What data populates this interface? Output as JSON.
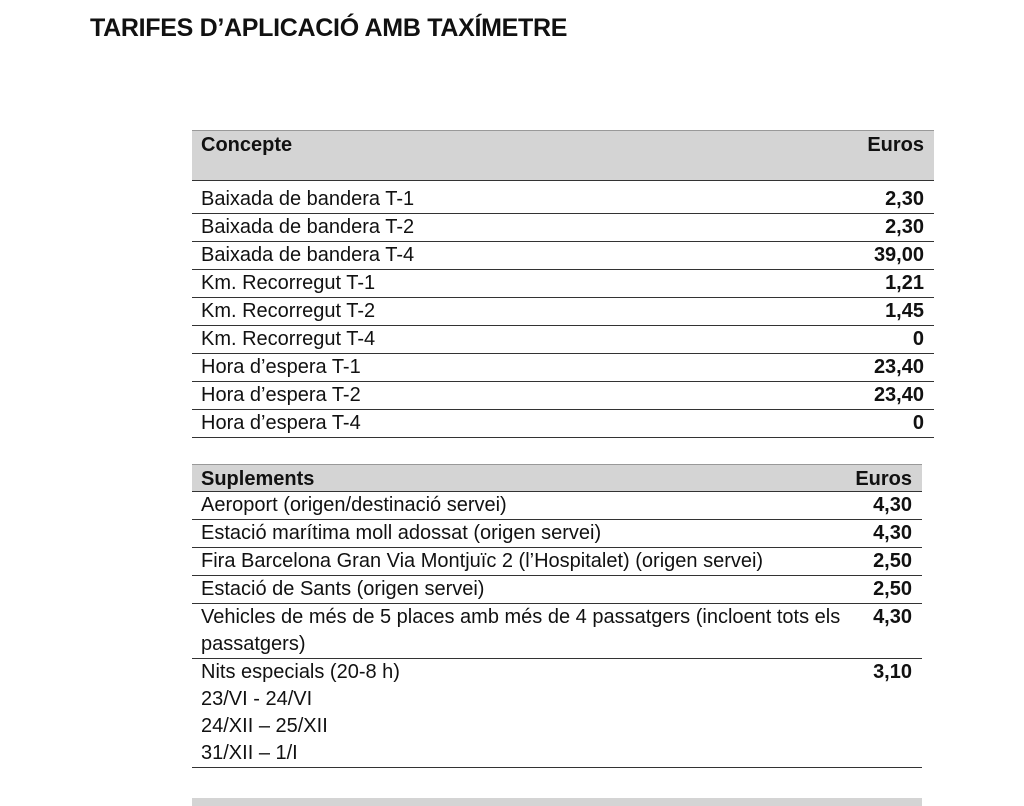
{
  "title": "TARIFES D’APLICACIÓ AMB TAXÍMETRE",
  "table1": {
    "header": [
      "Concepte",
      "Euros"
    ],
    "rows": [
      [
        "Baixada de bandera T-1",
        "2,30"
      ],
      [
        "Baixada de bandera T-2",
        "2,30"
      ],
      [
        "Baixada de bandera T-4",
        "39,00"
      ],
      [
        "Km. Recorregut T-1",
        "1,21"
      ],
      [
        "Km. Recorregut T-2",
        "1,45"
      ],
      [
        "Km. Recorregut T-4",
        "0"
      ],
      [
        "Hora d’espera T-1",
        "23,40"
      ],
      [
        "Hora d’espera T-2",
        "23,40"
      ],
      [
        "Hora d’espera T-4",
        "0"
      ]
    ]
  },
  "table2": {
    "header": [
      "Suplements",
      "Euros"
    ],
    "rows": [
      [
        "Aeroport (origen/destinació servei)",
        "4,30"
      ],
      [
        "Estació marítima moll adossat (origen servei)",
        "4,30"
      ],
      [
        "Fira Barcelona Gran Via  Montjuïc 2 (l’Hospitalet) (origen servei)",
        "2,50"
      ],
      [
        "Estació de Sants (origen servei)",
        "2,50"
      ],
      [
        "Vehicles de més de 5 places amb més de 4 passatgers (incloent tots els passatgers)",
        "4,30"
      ],
      [
        [
          "Nits especials (20-8 h)",
          "23/VI  - 24/VI",
          "24/XII – 25/XII",
          "31/XII – 1/I"
        ],
        "3,10"
      ]
    ]
  }
}
